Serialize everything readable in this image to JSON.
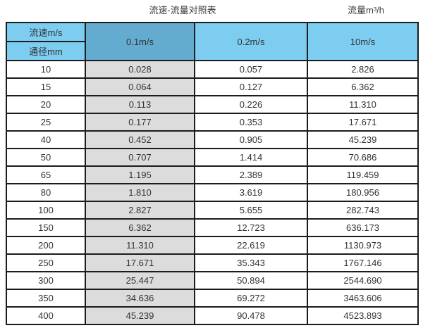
{
  "captions": {
    "title": "流速-流量对照表",
    "unit_label": "流量m³/h"
  },
  "table": {
    "header": {
      "velocity_label": "流速m/s",
      "diameter_label": "通径mm",
      "velocity_columns": [
        "0.1m/s",
        "0.2m/s",
        "10m/s"
      ]
    },
    "rows": [
      [
        "10",
        "0.028",
        "0.057",
        "2.826"
      ],
      [
        "15",
        "0.064",
        "0.127",
        "6.362"
      ],
      [
        "20",
        "0.113",
        "0.226",
        "11.310"
      ],
      [
        "25",
        "0.177",
        "0.353",
        "17.671"
      ],
      [
        "40",
        "0.452",
        "0.905",
        "45.239"
      ],
      [
        "50",
        "0.707",
        "1.414",
        "70.686"
      ],
      [
        "65",
        "1.195",
        "2.389",
        "119.459"
      ],
      [
        "80",
        "1.810",
        "3.619",
        "180.956"
      ],
      [
        "100",
        "2.827",
        "5.655",
        "282.743"
      ],
      [
        "150",
        "6.362",
        "12.723",
        "636.173"
      ],
      [
        "200",
        "11.310",
        "22.619",
        "1130.973"
      ],
      [
        "250",
        "17.671",
        "35.343",
        "1767.146"
      ],
      [
        "300",
        "25.447",
        "50.894",
        "2544.690"
      ],
      [
        "350",
        "34.636",
        "69.272",
        "3463.606"
      ],
      [
        "400",
        "45.239",
        "90.478",
        "4523.893"
      ]
    ]
  },
  "colors": {
    "header_blue": "#7dcdf0",
    "header_dark_blue": "#63accf",
    "gray_column": "#dcdcdc",
    "border": "#1c1c1c",
    "text": "#333333"
  },
  "chart_data": {
    "type": "table",
    "title": "流速-流量对照表",
    "unit": "流量m³/h",
    "row_header_label": "通径mm",
    "column_header_label": "流速m/s",
    "columns": [
      "通径mm",
      "0.1m/s",
      "0.2m/s",
      "10m/s"
    ],
    "rows": [
      [
        10,
        0.028,
        0.057,
        2.826
      ],
      [
        15,
        0.064,
        0.127,
        6.362
      ],
      [
        20,
        0.113,
        0.226,
        11.31
      ],
      [
        25,
        0.177,
        0.353,
        17.671
      ],
      [
        40,
        0.452,
        0.905,
        45.239
      ],
      [
        50,
        0.707,
        1.414,
        70.686
      ],
      [
        65,
        1.195,
        2.389,
        119.459
      ],
      [
        80,
        1.81,
        3.619,
        180.956
      ],
      [
        100,
        2.827,
        5.655,
        282.743
      ],
      [
        150,
        6.362,
        12.723,
        636.173
      ],
      [
        200,
        11.31,
        22.619,
        1130.973
      ],
      [
        250,
        17.671,
        35.343,
        1767.146
      ],
      [
        300,
        25.447,
        50.894,
        2544.69
      ],
      [
        350,
        34.636,
        69.272,
        3463.606
      ],
      [
        400,
        45.239,
        90.478,
        4523.893
      ]
    ]
  }
}
